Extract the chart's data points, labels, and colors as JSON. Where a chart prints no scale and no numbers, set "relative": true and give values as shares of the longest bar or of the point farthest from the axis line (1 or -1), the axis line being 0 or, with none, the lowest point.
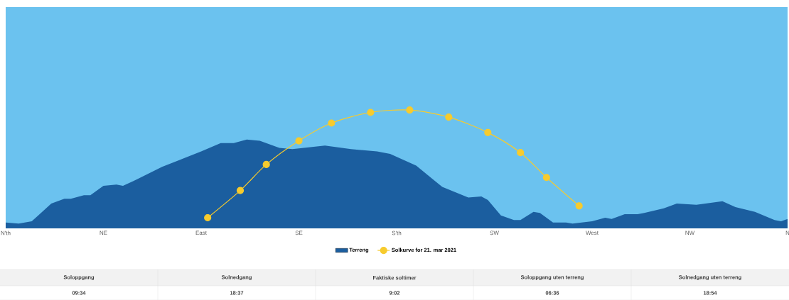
{
  "chart_data": {
    "type": "area",
    "relative": true,
    "legend": "bottom",
    "categories": [
      "N'th",
      null,
      null,
      null,
      null,
      null,
      null,
      null,
      null,
      null,
      null,
      null,
      null,
      null,
      null,
      "NE",
      null,
      null,
      null,
      null,
      null,
      null,
      null,
      null,
      null,
      null,
      null,
      null,
      null,
      null,
      "East",
      null,
      null,
      null,
      null,
      null,
      null,
      null,
      null,
      null,
      null,
      null,
      null,
      null,
      null,
      "SE",
      null,
      null,
      null,
      null,
      null,
      null,
      null,
      null,
      null,
      null,
      null,
      null,
      null,
      null,
      "S'th",
      null,
      null,
      null,
      null,
      null,
      null,
      null,
      null,
      null,
      null,
      null,
      null,
      null,
      null,
      "SW",
      null,
      null,
      null,
      null,
      null,
      null,
      null,
      null,
      null,
      null,
      null,
      null,
      null,
      null,
      "West",
      null,
      null,
      null,
      null,
      null,
      null,
      null,
      null,
      null,
      null,
      null,
      null,
      null,
      null,
      "NW",
      null,
      null,
      null,
      null,
      null,
      null,
      null,
      null,
      null,
      null,
      null,
      null,
      null,
      null,
      "N"
    ],
    "series": [
      {
        "name": "Terreng",
        "color": "#1b5e9f",
        "values": [
          0.05,
          null,
          0.04,
          null,
          0.06,
          0.11,
          null,
          0.21,
          null,
          0.25,
          0.25,
          null,
          0.28,
          0.28,
          null,
          0.36,
          null,
          0.37,
          0.36,
          null,
          0.41,
          null,
          null,
          null,
          0.52,
          null,
          null,
          null,
          null,
          null,
          0.65,
          null,
          null,
          0.72,
          null,
          0.72,
          null,
          0.75,
          null,
          0.74,
          null,
          null,
          0.68,
          null,
          0.67,
          null,
          null,
          null,
          null,
          0.7,
          null,
          null,
          null,
          0.67,
          null,
          null,
          null,
          0.65,
          null,
          0.63,
          null,
          null,
          null,
          0.53,
          null,
          null,
          null,
          0.35,
          null,
          null,
          null,
          0.26,
          null,
          0.27,
          0.24,
          null,
          0.11,
          null,
          0.07,
          0.07,
          null,
          0.14,
          0.13,
          null,
          0.05,
          null,
          0.05,
          0.04,
          null,
          null,
          0.06,
          null,
          0.09,
          0.08,
          null,
          0.12,
          null,
          0.12,
          0.13,
          null,
          null,
          0.17,
          null,
          0.21,
          null,
          null,
          0.2,
          null,
          null,
          null,
          0.23,
          null,
          0.18,
          null,
          null,
          0.14,
          null,
          null,
          0.07,
          0.06,
          0.08
        ]
      },
      {
        "name": "Solkurve for 21. mar 2021",
        "type": "line",
        "color": "#f7cb2d",
        "marker": "circle",
        "values": [
          null,
          null,
          null,
          null,
          null,
          null,
          null,
          null,
          null,
          null,
          null,
          null,
          null,
          null,
          null,
          null,
          null,
          null,
          null,
          null,
          null,
          null,
          null,
          null,
          null,
          null,
          null,
          null,
          null,
          null,
          null,
          0.09,
          null,
          null,
          null,
          null,
          0.32,
          null,
          null,
          null,
          0.54,
          null,
          null,
          null,
          null,
          0.74,
          null,
          null,
          null,
          null,
          0.89,
          null,
          null,
          null,
          null,
          null,
          0.98,
          null,
          null,
          null,
          null,
          null,
          1.0,
          null,
          null,
          null,
          null,
          null,
          0.94,
          null,
          null,
          null,
          null,
          null,
          0.81,
          null,
          null,
          null,
          null,
          0.64,
          null,
          null,
          null,
          0.43,
          null,
          null,
          null,
          null,
          0.19,
          null,
          null,
          null,
          null,
          null,
          null,
          null,
          null,
          null,
          null,
          null,
          null,
          null,
          null,
          null,
          null,
          null,
          null,
          null,
          null,
          null,
          null,
          null,
          null,
          null,
          null,
          null,
          null,
          null,
          null,
          null,
          null
        ]
      }
    ],
    "annotations": [
      "Soloppgang",
      "Solnedgang",
      "Faktiske soltimer",
      "Soloppgang uten terreng",
      "Solnedgang uten terreng",
      "09:34",
      "18:37",
      "9:02",
      "06:36",
      "18:54"
    ]
  }
}
